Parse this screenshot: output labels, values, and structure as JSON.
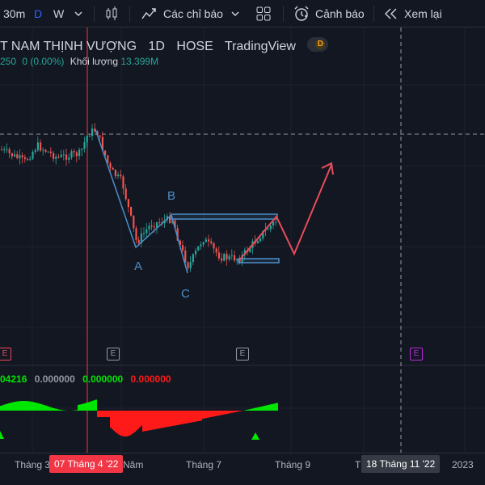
{
  "toolbar": {
    "interval_30m": "30m",
    "interval_d": "D",
    "interval_w": "W",
    "indicators_label": "Các chỉ báo",
    "alerts_label": "Cảnh báo",
    "replay_label": "Xem lại"
  },
  "legend": {
    "symbol_name": "T NAM THỊNH VƯỢNG",
    "interval": "1D",
    "exchange": "HOSE",
    "source": "TradingView",
    "badge": "D",
    "change_prefix": "250",
    "change": "0 (0.00%)",
    "volume_label": "Khối lượng",
    "volume_value": "13.399M"
  },
  "pattern_labels": {
    "a": "A",
    "b": "B",
    "c": "C"
  },
  "event_marks": {
    "e1": "E",
    "e2": "E",
    "e3": "E",
    "e4": "E"
  },
  "indicator": {
    "v1": "04216",
    "v2": "0.000000",
    "v3": "0.000000",
    "v4": "0.000000"
  },
  "time_axis": {
    "t1": "Tháng 3",
    "highlight_date": "07 Tháng 4 '22",
    "t2": "Năm",
    "t3": "Tháng 7",
    "t4": "Tháng 9",
    "t5": "T",
    "cursor_date": "18 Tháng 11 '22",
    "t6": "2023"
  },
  "colors": {
    "background": "#131722",
    "candle_up": "#26a69a",
    "candle_down": "#ef5350",
    "pattern_line": "#4a90c8",
    "projection": "#e84c5a",
    "highlight_red": "#f23645",
    "event_purple": "#b42bd2",
    "osc_green": "#00e600",
    "osc_red": "#ff1a1a"
  }
}
